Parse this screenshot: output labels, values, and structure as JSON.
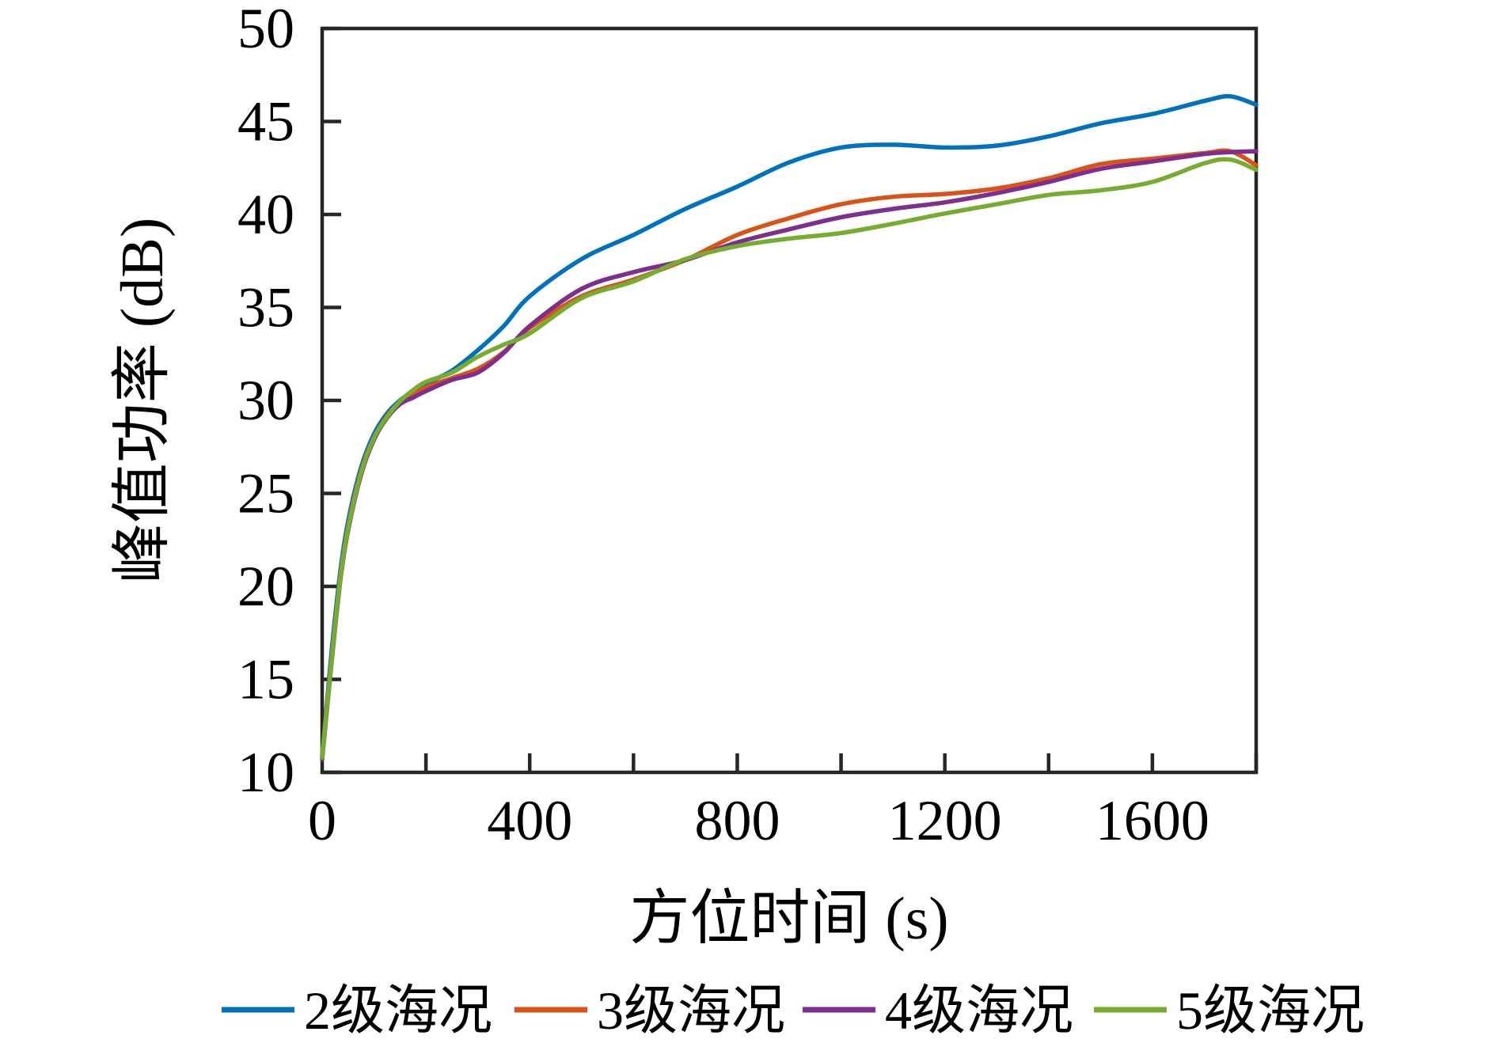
{
  "figure": {
    "background": "#ffffff",
    "axis_color": "#262626",
    "text_color": "#000000"
  },
  "chart_data": {
    "type": "line",
    "title": "",
    "xlabel": "方位时间 (s)",
    "ylabel": "峰值功率 (dB)",
    "xlim": [
      0,
      1800
    ],
    "ylim": [
      10,
      50
    ],
    "grid": false,
    "legend_position": "bottom",
    "x_tick_marks": [
      200,
      400,
      600,
      800,
      1000,
      1200,
      1400,
      1600,
      1800
    ],
    "x_tick_labels": [
      0,
      400,
      800,
      1200,
      1600
    ],
    "y_tick_labels": [
      10,
      15,
      20,
      25,
      30,
      35,
      40,
      45,
      50
    ],
    "x": [
      0,
      10,
      20,
      35,
      50,
      75,
      100,
      125,
      150,
      175,
      200,
      250,
      300,
      350,
      400,
      500,
      600,
      700,
      800,
      900,
      1000,
      1100,
      1200,
      1300,
      1400,
      1500,
      1600,
      1700,
      1750,
      1800
    ],
    "series": [
      {
        "name": "2级海况",
        "color": "#0072BD",
        "values": [
          10.9,
          14.0,
          17.0,
          20.8,
          23.5,
          26.4,
          28.2,
          29.3,
          30.0,
          30.5,
          30.9,
          31.6,
          32.7,
          34.0,
          35.6,
          37.6,
          38.9,
          40.3,
          41.5,
          42.8,
          43.6,
          43.75,
          43.6,
          43.7,
          44.2,
          44.9,
          45.4,
          46.1,
          46.35,
          45.9
        ]
      },
      {
        "name": "3级海况",
        "color": "#D95319",
        "values": [
          10.8,
          13.8,
          16.6,
          20.5,
          23.2,
          26.2,
          28.0,
          29.15,
          29.9,
          30.3,
          30.7,
          31.2,
          31.7,
          32.6,
          33.9,
          35.6,
          36.5,
          37.55,
          38.9,
          39.8,
          40.55,
          40.95,
          41.1,
          41.4,
          41.95,
          42.7,
          43.0,
          43.3,
          43.4,
          42.65
        ]
      },
      {
        "name": "4级海况",
        "color": "#7E2F8E",
        "values": [
          10.7,
          13.6,
          16.4,
          20.3,
          23.0,
          26.0,
          27.9,
          29.05,
          29.8,
          30.15,
          30.5,
          31.1,
          31.5,
          32.55,
          34.0,
          36.0,
          36.9,
          37.55,
          38.5,
          39.2,
          39.85,
          40.3,
          40.65,
          41.15,
          41.75,
          42.45,
          42.85,
          43.25,
          43.35,
          43.4
        ]
      },
      {
        "name": "5级海况",
        "color": "#77AC30",
        "values": [
          10.8,
          13.7,
          16.5,
          20.4,
          23.1,
          26.1,
          28.0,
          29.1,
          29.95,
          30.55,
          31.0,
          31.5,
          32.35,
          33.0,
          33.6,
          35.5,
          36.4,
          37.6,
          38.3,
          38.7,
          39.0,
          39.5,
          40.05,
          40.55,
          41.05,
          41.3,
          41.75,
          42.75,
          42.95,
          42.4
        ]
      }
    ]
  }
}
